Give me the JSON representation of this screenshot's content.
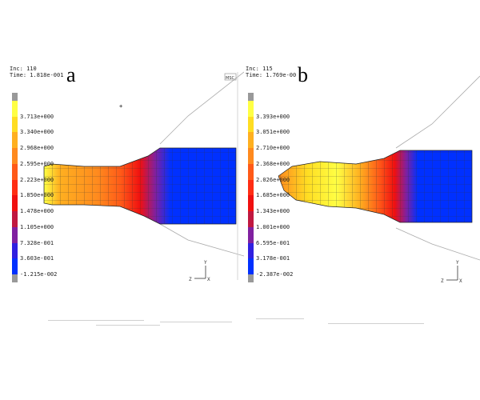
{
  "panels": [
    {
      "letter": "a",
      "inc_label": "Inc:  110",
      "time_label": "Time:  1.818e-001",
      "legend_values": [
        "3.713e+000",
        "3.340e+000",
        "2.968e+000",
        "2.595e+000",
        "2.223e+000",
        "1.850e+000",
        "1.478e+000",
        "1.105e+000",
        "7.328e-001",
        "3.603e-001",
        "-1.215e-002"
      ],
      "colors": [
        "#ffff44",
        "#ffdd22",
        "#ffb020",
        "#ff8a1e",
        "#ff5a18",
        "#ff2e14",
        "#f01010",
        "#c01840",
        "#8020a0",
        "#3020e0",
        "#0030ff"
      ],
      "logo": "MSC"
    },
    {
      "letter": "b",
      "inc_label": "Inc:  115",
      "time_label": "Time:  1.769e-00",
      "legend_values": [
        "3.393e+000",
        "3.051e+000",
        "2.710e+000",
        "2.368e+000",
        "2.026e+000",
        "1.685e+000",
        "1.343e+000",
        "1.001e+000",
        "6.595e-001",
        "3.178e-001",
        "-2.387e-002"
      ],
      "colors": [
        "#ffff44",
        "#ffdd22",
        "#ffb020",
        "#ff8a1e",
        "#ff5a18",
        "#ff2e14",
        "#f01010",
        "#c01840",
        "#8020a0",
        "#3020e0",
        "#0030ff"
      ],
      "logo": ""
    }
  ],
  "axis": {
    "y": "Y",
    "z": "Z",
    "x": "X"
  }
}
